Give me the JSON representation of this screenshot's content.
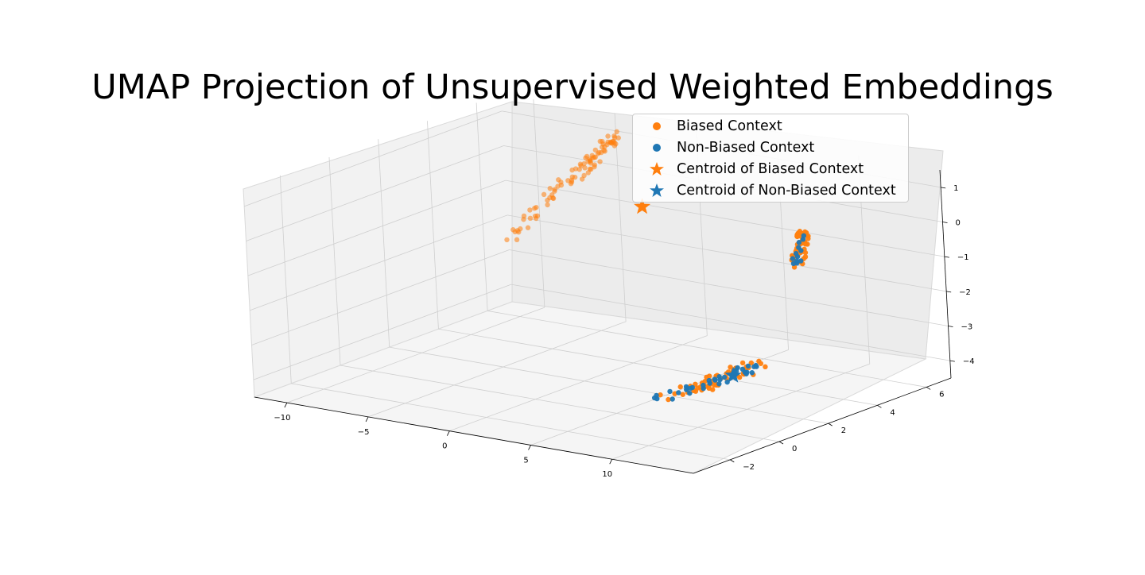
{
  "chart_data": {
    "type": "scatter",
    "projection": "3d",
    "title": "UMAP Projection of Unsupervised Weighted Embeddings",
    "xlabel": "",
    "ylabel": "",
    "zlabel": "",
    "xlim": [
      -12,
      15
    ],
    "ylim": [
      -3.5,
      7
    ],
    "zlim": [
      -4.5,
      1.5
    ],
    "x_ticks": [
      -10,
      -5,
      0,
      5,
      10
    ],
    "x_tick_labels": [
      "−10",
      "−5",
      "0",
      "5",
      "10"
    ],
    "y_ticks": [
      -2,
      0,
      2,
      4,
      6
    ],
    "y_tick_labels": [
      "−2",
      "0",
      "2",
      "4",
      "6"
    ],
    "z_ticks": [
      -4,
      -3,
      -2,
      -1,
      0,
      1
    ],
    "z_tick_labels": [
      "−4",
      "−3",
      "−2",
      "−1",
      "0",
      "1"
    ],
    "grid": true,
    "legend_position": "top-right",
    "series": [
      {
        "name": "Biased Context",
        "marker": "circle",
        "color": "#ff7f0e",
        "clusters": [
          {
            "x": [
              -9.5,
              -2.5
            ],
            "y": [
              5.5,
              5.5
            ],
            "z": [
              -2.0,
              1.5
            ]
          },
          {
            "x": [
              10.5,
              11.0
            ],
            "y": [
              4.0,
              4.0
            ],
            "z": [
              -0.8,
              0.2
            ]
          },
          {
            "x": [
              9.0,
              12.5
            ],
            "y": [
              -1.0,
              1.5
            ],
            "z": [
              -3.5,
              -2.8
            ]
          }
        ]
      },
      {
        "name": "Non-Biased Context",
        "marker": "circle",
        "color": "#1f77b4",
        "clusters": [
          {
            "x": [
              10.5,
              11.0
            ],
            "y": [
              4.0,
              4.0
            ],
            "z": [
              -0.8,
              0.2
            ]
          },
          {
            "x": [
              9.0,
              12.5
            ],
            "y": [
              -1.0,
              1.5
            ],
            "z": [
              -3.5,
              -2.8
            ]
          }
        ]
      },
      {
        "name": "Centroid of Biased Context",
        "marker": "star",
        "color": "#ff7f0e",
        "x": -0.5,
        "y": 5.0,
        "z": -0.3
      },
      {
        "name": "Centroid of Non-Biased Context",
        "marker": "star",
        "color": "#1f77b4",
        "x": 10.8,
        "y": 1.0,
        "z": -3.2
      }
    ]
  }
}
